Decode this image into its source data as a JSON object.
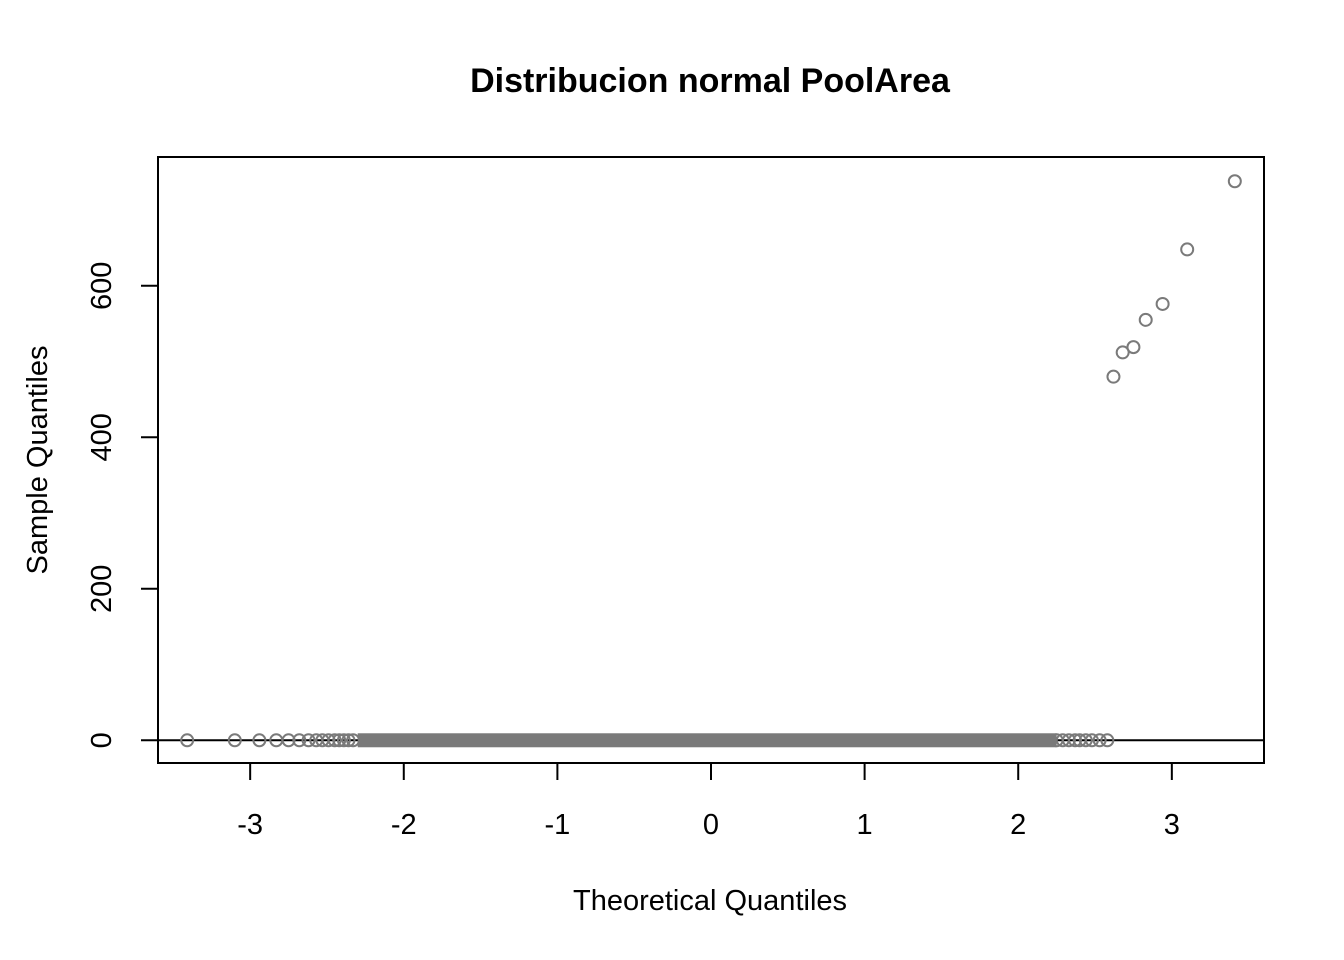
{
  "chart_data": {
    "type": "scatter",
    "title": "Distribucion normal PoolArea",
    "xlabel": "Theoretical Quantiles",
    "ylabel": "Sample Quantiles",
    "xlim": [
      -3.6,
      3.6
    ],
    "ylim": [
      -30,
      770
    ],
    "xticks": [
      -3,
      -2,
      -1,
      0,
      1,
      2,
      3
    ],
    "xtick_labels": [
      "-3",
      "-2",
      "-1",
      "0",
      "1",
      "2",
      "3"
    ],
    "yticks": [
      0,
      200,
      400,
      600
    ],
    "ytick_labels": [
      "0",
      "200",
      "400",
      "600"
    ],
    "grid": false,
    "reference_line": {
      "type": "horizontal",
      "y": 0
    },
    "zero_band": {
      "x_from": -2.3,
      "x_to": 2.25,
      "y": 0
    },
    "series": [
      {
        "points": [
          [
            -3.41,
            0
          ],
          [
            -3.1,
            0
          ],
          [
            -2.94,
            0
          ],
          [
            -2.83,
            0
          ],
          [
            -2.75,
            0
          ],
          [
            -2.68,
            0
          ],
          [
            -2.62,
            0
          ],
          [
            -2.57,
            0
          ],
          [
            -2.53,
            0
          ],
          [
            -2.49,
            0
          ],
          [
            -2.45,
            0
          ],
          [
            -2.42,
            0
          ],
          [
            -2.39,
            0
          ],
          [
            -2.36,
            0
          ],
          [
            -2.33,
            0
          ],
          [
            2.25,
            0
          ],
          [
            2.29,
            0
          ],
          [
            2.33,
            0
          ],
          [
            2.37,
            0
          ],
          [
            2.4,
            0
          ],
          [
            2.44,
            0
          ],
          [
            2.48,
            0
          ],
          [
            2.53,
            0
          ],
          [
            2.58,
            0
          ],
          [
            2.62,
            480
          ],
          [
            2.68,
            512
          ],
          [
            2.75,
            519
          ],
          [
            2.83,
            555
          ],
          [
            2.94,
            576
          ],
          [
            3.1,
            648
          ],
          [
            3.41,
            738
          ]
        ]
      }
    ]
  }
}
